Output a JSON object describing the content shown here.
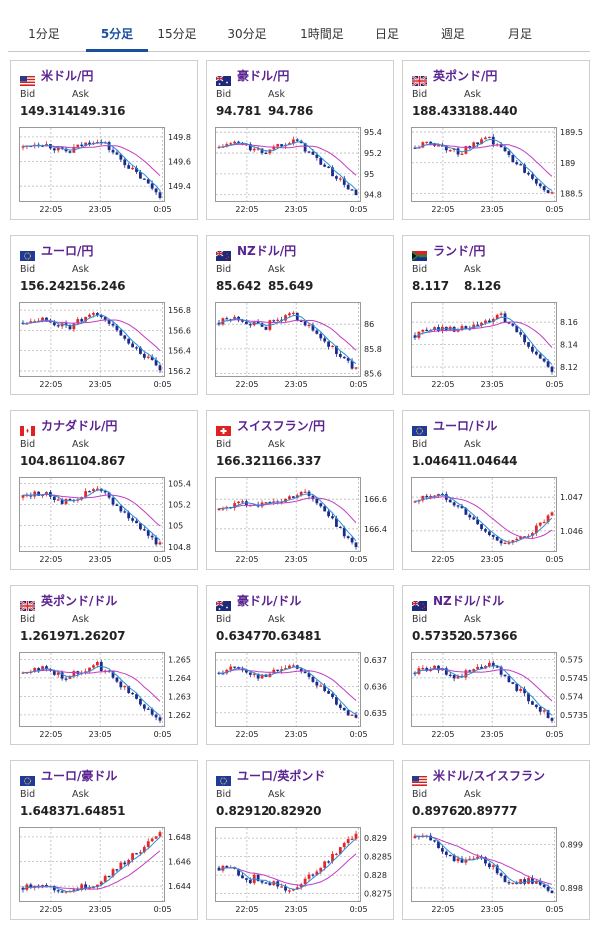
{
  "tabs": [
    {
      "label": "1分足",
      "active": false
    },
    {
      "label": "5分足",
      "active": true
    },
    {
      "label": "15分足",
      "active": false
    },
    {
      "label": "30分足",
      "active": false
    },
    {
      "label": "1時間足",
      "active": false
    },
    {
      "label": "日足",
      "active": false
    },
    {
      "label": "週足",
      "active": false
    },
    {
      "label": "月足",
      "active": false
    }
  ],
  "labels": {
    "bid": "Bid",
    "ask": "Ask"
  },
  "colors": {
    "up": "#e02828",
    "down": "#1c2a8c",
    "ma_short": "#2a8fd8",
    "ma_long": "#c33cc3",
    "title": "#5a2390"
  },
  "cards": [
    {
      "name": "米ドル/円",
      "flag": "us",
      "bid": "149.314",
      "ask": "149.316",
      "chart_data": {
        "type": "candlestick",
        "x_ticks": [
          "22:05",
          "23:05",
          "0:05"
        ],
        "y_ticks": [
          "149.8",
          "149.6",
          "149.4"
        ],
        "y_tick_values": [
          149.8,
          149.6,
          149.4
        ],
        "ylim": [
          149.28,
          149.88
        ],
        "shape": "drop"
      }
    },
    {
      "name": "豪ドル/円",
      "flag": "au",
      "bid": "94.781",
      "ask": "94.786",
      "chart_data": {
        "type": "candlestick",
        "x_ticks": [
          "22:05",
          "23:05",
          "0:05"
        ],
        "y_ticks": [
          "95.4",
          "95.2",
          "95",
          "94.8"
        ],
        "y_tick_values": [
          95.4,
          95.2,
          95.0,
          94.8
        ],
        "ylim": [
          94.74,
          95.45
        ],
        "shape": "drop"
      }
    },
    {
      "name": "英ポンド/円",
      "flag": "uk",
      "bid": "188.433",
      "ask": "188.440",
      "chart_data": {
        "type": "candlestick",
        "x_ticks": [
          "22:05",
          "23:05",
          "0:05"
        ],
        "y_ticks": [
          "189.5",
          "189",
          "188.5"
        ],
        "y_tick_values": [
          189.5,
          189.0,
          188.5
        ],
        "ylim": [
          188.38,
          189.58
        ],
        "shape": "drop"
      }
    },
    {
      "name": "ユーロ/円",
      "flag": "eu",
      "bid": "156.242",
      "ask": "156.246",
      "chart_data": {
        "type": "candlestick",
        "x_ticks": [
          "22:05",
          "23:05",
          "0:05"
        ],
        "y_ticks": [
          "156.8",
          "156.6",
          "156.4",
          "156.2"
        ],
        "y_tick_values": [
          156.8,
          156.6,
          156.4,
          156.2
        ],
        "ylim": [
          156.15,
          156.88
        ],
        "shape": "drop"
      }
    },
    {
      "name": "NZドル/円",
      "flag": "nz",
      "bid": "85.642",
      "ask": "85.649",
      "chart_data": {
        "type": "candlestick",
        "x_ticks": [
          "22:05",
          "23:05",
          "0:05"
        ],
        "y_ticks": [
          "86",
          "85.8",
          "85.6"
        ],
        "y_tick_values": [
          86.0,
          85.8,
          85.6
        ],
        "ylim": [
          85.58,
          86.18
        ],
        "shape": "drop"
      }
    },
    {
      "name": "ランド/円",
      "flag": "za",
      "bid": "8.117",
      "ask": "8.126",
      "chart_data": {
        "type": "candlestick",
        "x_ticks": [
          "22:05",
          "23:05",
          "0:05"
        ],
        "y_ticks": [
          "8.16",
          "8.14",
          "8.12"
        ],
        "y_tick_values": [
          8.16,
          8.14,
          8.12
        ],
        "ylim": [
          8.112,
          8.178
        ],
        "shape": "rise-drop"
      }
    },
    {
      "name": "カナダドル/円",
      "flag": "ca",
      "bid": "104.861",
      "ask": "104.867",
      "chart_data": {
        "type": "candlestick",
        "x_ticks": [
          "22:05",
          "23:05",
          "0:05"
        ],
        "y_ticks": [
          "105.4",
          "105.2",
          "105",
          "104.8"
        ],
        "y_tick_values": [
          105.4,
          105.2,
          105.0,
          104.8
        ],
        "ylim": [
          104.76,
          105.46
        ],
        "shape": "drop"
      }
    },
    {
      "name": "スイスフラン/円",
      "flag": "ch",
      "bid": "166.321",
      "ask": "166.337",
      "chart_data": {
        "type": "candlestick",
        "x_ticks": [
          "22:05",
          "23:05",
          "0:05"
        ],
        "y_ticks": [
          "166.6",
          "166.4"
        ],
        "y_tick_values": [
          166.6,
          166.4
        ],
        "ylim": [
          166.25,
          166.75
        ],
        "shape": "rise-drop"
      }
    },
    {
      "name": "ユーロ/ドル",
      "flag": "eu",
      "bid": "1.04641",
      "ask": "1.04644",
      "chart_data": {
        "type": "candlestick",
        "x_ticks": [
          "22:05",
          "23:05",
          "0:05"
        ],
        "y_ticks": [
          "1.047",
          "1.046"
        ],
        "y_tick_values": [
          1.047,
          1.046
        ],
        "ylim": [
          1.0454,
          1.0476
        ],
        "shape": "wave"
      }
    },
    {
      "name": "英ポンド/ドル",
      "flag": "uk",
      "bid": "1.26197",
      "ask": "1.26207",
      "chart_data": {
        "type": "candlestick",
        "x_ticks": [
          "22:05",
          "23:05",
          "0:05"
        ],
        "y_ticks": [
          "1.265",
          "1.264",
          "1.263",
          "1.262"
        ],
        "y_tick_values": [
          1.265,
          1.264,
          1.263,
          1.262
        ],
        "ylim": [
          1.2614,
          1.2654
        ],
        "shape": "drop"
      }
    },
    {
      "name": "豪ドル/ドル",
      "flag": "au",
      "bid": "0.63477",
      "ask": "0.63481",
      "chart_data": {
        "type": "candlestick",
        "x_ticks": [
          "22:05",
          "23:05",
          "0:05"
        ],
        "y_ticks": [
          "0.637",
          "0.636",
          "0.635"
        ],
        "y_tick_values": [
          0.637,
          0.636,
          0.635
        ],
        "ylim": [
          0.6345,
          0.6373
        ],
        "shape": "drop"
      }
    },
    {
      "name": "NZドル/ドル",
      "flag": "nz",
      "bid": "0.57352",
      "ask": "0.57366",
      "chart_data": {
        "type": "candlestick",
        "x_ticks": [
          "22:05",
          "23:05",
          "0:05"
        ],
        "y_ticks": [
          "0.575",
          "0.5745",
          "0.574",
          "0.5735"
        ],
        "y_tick_values": [
          0.575,
          0.5745,
          0.574,
          0.5735
        ],
        "ylim": [
          0.5732,
          0.5752
        ],
        "shape": "drop"
      }
    },
    {
      "name": "ユーロ/豪ドル",
      "flag": "eu",
      "bid": "1.64837",
      "ask": "1.64851",
      "chart_data": {
        "type": "candlestick",
        "x_ticks": [
          "22:05",
          "23:05",
          "0:05"
        ],
        "y_ticks": [
          "1.648",
          "1.646",
          "1.644"
        ],
        "y_tick_values": [
          1.648,
          1.646,
          1.644
        ],
        "ylim": [
          1.6428,
          1.6488
        ],
        "shape": "rise"
      }
    },
    {
      "name": "ユーロ/英ポンド",
      "flag": "eu",
      "bid": "0.82912",
      "ask": "0.82920",
      "chart_data": {
        "type": "candlestick",
        "x_ticks": [
          "22:05",
          "23:05",
          "0:05"
        ],
        "y_ticks": [
          "0.829",
          "0.8285",
          "0.828",
          "0.8275"
        ],
        "y_tick_values": [
          0.829,
          0.8285,
          0.828,
          0.8275
        ],
        "ylim": [
          0.8273,
          0.8293
        ],
        "shape": "dip-rise"
      }
    },
    {
      "name": "米ドル/スイスフラン",
      "flag": "us",
      "bid": "0.89762",
      "ask": "0.89777",
      "chart_data": {
        "type": "candlestick",
        "x_ticks": [
          "22:05",
          "23:05",
          "0:05"
        ],
        "y_ticks": [
          "0.899",
          "0.898"
        ],
        "y_tick_values": [
          0.899,
          0.898
        ],
        "ylim": [
          0.8977,
          0.8994
        ],
        "shape": "decline"
      }
    }
  ]
}
